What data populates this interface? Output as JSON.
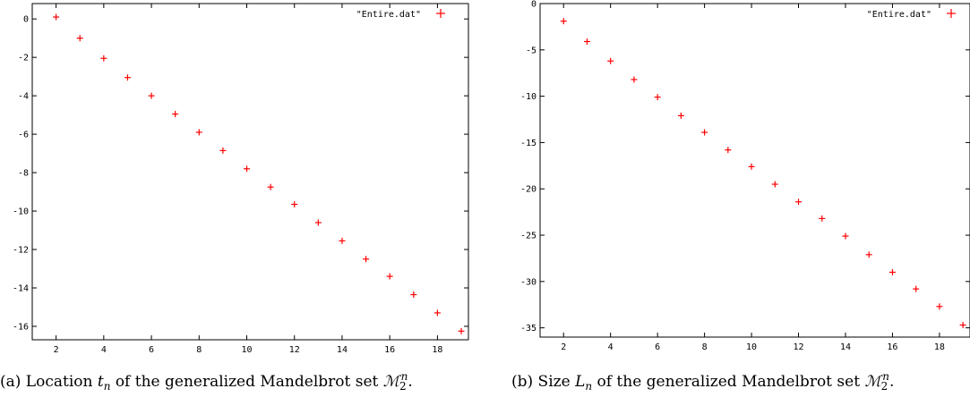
{
  "chart_data": [
    {
      "type": "scatter",
      "series": [
        {
          "name": "\"Entire.dat\"",
          "color": "#ff0000",
          "x": [
            2,
            3,
            4,
            5,
            6,
            7,
            8,
            9,
            10,
            11,
            12,
            13,
            14,
            15,
            16,
            17,
            18,
            19
          ],
          "y": [
            0.1,
            -1.0,
            -2.05,
            -3.05,
            -4.0,
            -4.95,
            -5.9,
            -6.85,
            -7.8,
            -8.75,
            -9.65,
            -10.6,
            -11.55,
            -12.5,
            -13.4,
            -14.35,
            -15.3,
            -16.25
          ]
        }
      ],
      "xlim": [
        1,
        19.3
      ],
      "ylim": [
        -16.7,
        0.8
      ],
      "xticks": [
        "2",
        "4",
        "6",
        "8",
        "10",
        "12",
        "14",
        "16",
        "18"
      ],
      "yticks": [
        "0",
        "-2",
        "-4",
        "-6",
        "-8",
        "-10",
        "-12",
        "-14",
        "-16"
      ],
      "xlabel": "",
      "ylabel": "",
      "grid": false,
      "legend_position": "top-right",
      "caption": "(a)  Location t_n of the generalized Mandelbrot set ℳ_2^n."
    },
    {
      "type": "scatter",
      "series": [
        {
          "name": "\"Entire.dat\"",
          "color": "#ff0000",
          "x": [
            2,
            3,
            4,
            5,
            6,
            7,
            8,
            9,
            10,
            11,
            12,
            13,
            14,
            15,
            16,
            17,
            18,
            19
          ],
          "y": [
            -1.9,
            -4.1,
            -6.2,
            -8.2,
            -10.1,
            -12.1,
            -13.9,
            -15.8,
            -17.6,
            -19.5,
            -21.4,
            -23.2,
            -25.1,
            -27.1,
            -29.0,
            -30.8,
            -32.7,
            -34.7
          ]
        }
      ],
      "xlim": [
        1,
        19.3
      ],
      "ylim": [
        -36.0,
        0
      ],
      "xticks": [
        "2",
        "4",
        "6",
        "8",
        "10",
        "12",
        "14",
        "16",
        "18"
      ],
      "yticks": [
        "0",
        "-5",
        "-10",
        "-15",
        "-20",
        "-25",
        "-30",
        "-35"
      ],
      "xlabel": "",
      "ylabel": "",
      "grid": false,
      "legend_position": "top-right",
      "caption": "(b) Size L_n of the generalized Mandelbrot set ℳ_2^n."
    }
  ]
}
